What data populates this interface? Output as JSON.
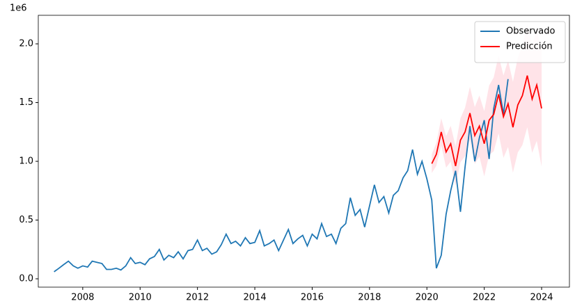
{
  "chart_data": {
    "type": "line",
    "y_offset_label": "1e6",
    "xlim": [
      2006.45,
      2024.97
    ],
    "xticks": [
      2008,
      2010,
      2012,
      2014,
      2016,
      2018,
      2020,
      2022,
      2024
    ],
    "ylim": [
      -71000,
      2243000
    ],
    "yticks": [
      {
        "value": 0,
        "label": "0.0"
      },
      {
        "value": 500000,
        "label": "0.5"
      },
      {
        "value": 1000000,
        "label": "1.0"
      },
      {
        "value": 1500000,
        "label": "1.5"
      },
      {
        "value": 2000000,
        "label": "2.0"
      }
    ],
    "legend": "upper right",
    "series": [
      {
        "name": "Observado",
        "color": "#1f77b4",
        "x": [
          2007,
          2007.17,
          2007.33,
          2007.5,
          2007.67,
          2007.83,
          2008,
          2008.17,
          2008.33,
          2008.5,
          2008.67,
          2008.83,
          2009,
          2009.17,
          2009.33,
          2009.5,
          2009.67,
          2009.83,
          2010,
          2010.17,
          2010.33,
          2010.5,
          2010.67,
          2010.83,
          2011,
          2011.17,
          2011.33,
          2011.5,
          2011.67,
          2011.83,
          2012,
          2012.17,
          2012.33,
          2012.5,
          2012.67,
          2012.83,
          2013,
          2013.17,
          2013.33,
          2013.5,
          2013.67,
          2013.83,
          2014,
          2014.17,
          2014.33,
          2014.5,
          2014.67,
          2014.83,
          2015,
          2015.17,
          2015.33,
          2015.5,
          2015.67,
          2015.83,
          2016,
          2016.17,
          2016.33,
          2016.5,
          2016.67,
          2016.83,
          2017,
          2017.17,
          2017.33,
          2017.5,
          2017.67,
          2017.83,
          2018,
          2018.17,
          2018.33,
          2018.5,
          2018.67,
          2018.83,
          2019,
          2019.17,
          2019.33,
          2019.5,
          2019.67,
          2019.83,
          2020,
          2020.17,
          2020.33,
          2020.5,
          2020.67,
          2020.83,
          2021,
          2021.17,
          2021.33,
          2021.5,
          2021.67,
          2021.83,
          2022,
          2022.17,
          2022.33,
          2022.5,
          2022.67,
          2022.83
        ],
        "values": [
          60000,
          90000,
          120000,
          150000,
          110000,
          90000,
          110000,
          100000,
          150000,
          140000,
          130000,
          80000,
          80000,
          90000,
          75000,
          110000,
          180000,
          130000,
          140000,
          120000,
          170000,
          190000,
          250000,
          160000,
          200000,
          180000,
          230000,
          170000,
          240000,
          250000,
          330000,
          240000,
          260000,
          210000,
          230000,
          290000,
          380000,
          300000,
          320000,
          280000,
          350000,
          300000,
          310000,
          410000,
          280000,
          300000,
          330000,
          240000,
          330000,
          420000,
          300000,
          340000,
          370000,
          280000,
          380000,
          340000,
          470000,
          360000,
          380000,
          300000,
          430000,
          470000,
          690000,
          540000,
          590000,
          440000,
          620000,
          800000,
          650000,
          700000,
          560000,
          710000,
          750000,
          860000,
          920000,
          1100000,
          890000,
          1000000,
          850000,
          670000,
          90000,
          200000,
          550000,
          750000,
          920000,
          570000,
          950000,
          1300000,
          1000000,
          1200000,
          1350000,
          1020000,
          1450000,
          1650000,
          1400000,
          1700000
        ]
      },
      {
        "name": "Predicción",
        "color": "#ff0000",
        "band_color": "#ffc0cb",
        "x": [
          2020.17,
          2020.33,
          2020.5,
          2020.67,
          2020.83,
          2021,
          2021.17,
          2021.33,
          2021.5,
          2021.67,
          2021.83,
          2022,
          2022.17,
          2022.33,
          2022.5,
          2022.67,
          2022.83,
          2023,
          2023.17,
          2023.33,
          2023.5,
          2023.67,
          2023.83,
          2024
        ],
        "values": [
          980000,
          1060000,
          1250000,
          1080000,
          1150000,
          960000,
          1180000,
          1250000,
          1410000,
          1220000,
          1300000,
          1150000,
          1350000,
          1400000,
          1570000,
          1380000,
          1490000,
          1290000,
          1480000,
          1560000,
          1730000,
          1530000,
          1650000,
          1450000
        ],
        "lower": [
          900000,
          962000,
          1134000,
          946000,
          998000,
          790000,
          992000,
          1044000,
          1186000,
          978000,
          1040000,
          872000,
          1054000,
          1086000,
          1238000,
          1030000,
          1122000,
          904000,
          1076000,
          1138000,
          1290000,
          1072000,
          1174000,
          956000
        ],
        "upper": [
          1060000,
          1158000,
          1366000,
          1214000,
          1302000,
          1130000,
          1368000,
          1456000,
          1634000,
          1462000,
          1560000,
          1428000,
          1646000,
          1714000,
          1902000,
          1730000,
          1858000,
          1676000,
          1884000,
          1982000,
          2170000,
          1988000,
          2126000,
          1944000
        ]
      }
    ]
  }
}
